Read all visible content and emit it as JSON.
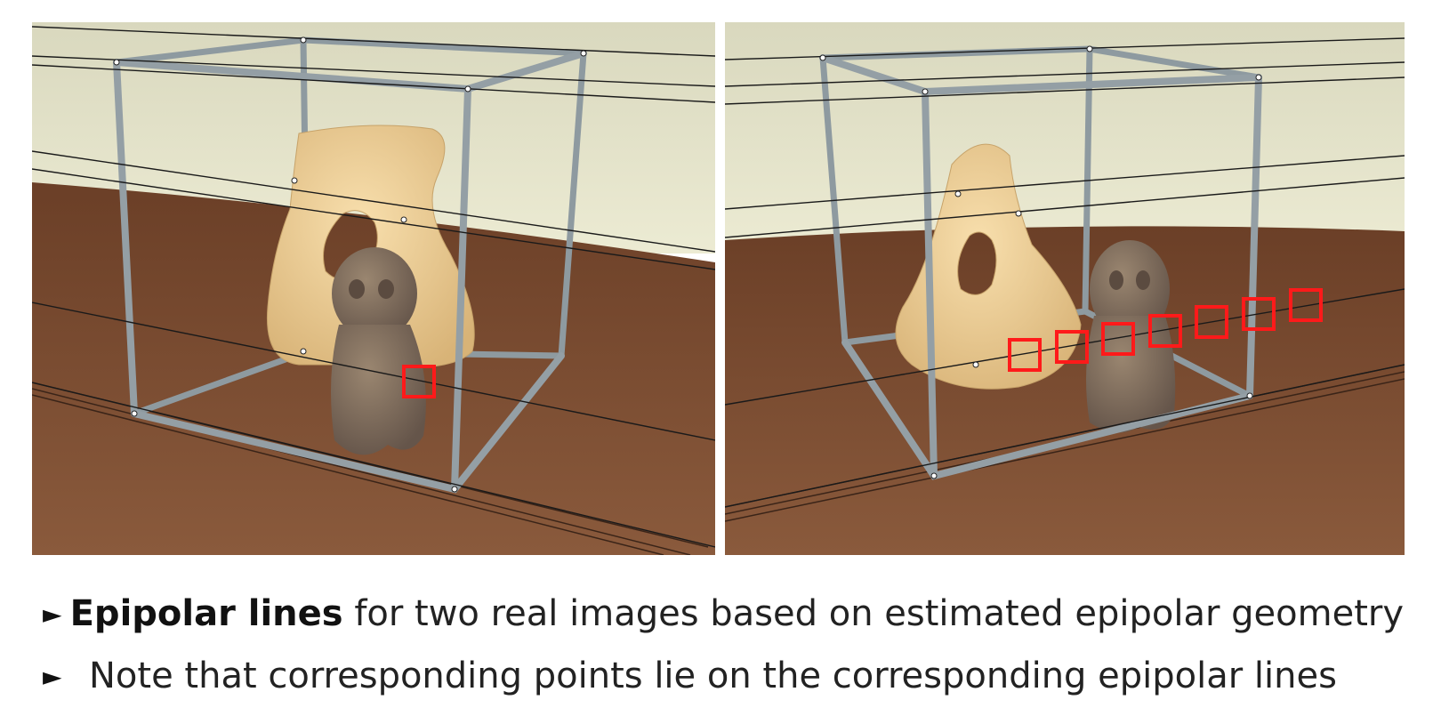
{
  "slide": {
    "images": [
      {
        "label": "left-view",
        "highlight_boxes": 1
      },
      {
        "label": "right-view",
        "highlight_boxes": 7
      }
    ],
    "colors": {
      "highlight": "#ff1a1a",
      "frame": "#8e9aa0",
      "wall": "#e4e1c6",
      "table": "#7a4a30",
      "sculpture": "#e7c98f",
      "figurine": "#7d6b58",
      "epipolar_line": "#1a1a1a"
    },
    "bullets": [
      {
        "icon": "triangle-bullet-icon",
        "bold": "Epipolar lines",
        "rest": "for two real images based on estimated epipolar geometry"
      },
      {
        "icon": "triangle-bullet-icon",
        "bold": "",
        "rest": "Note that corresponding points lie on the corresponding epipolar lines"
      }
    ]
  }
}
